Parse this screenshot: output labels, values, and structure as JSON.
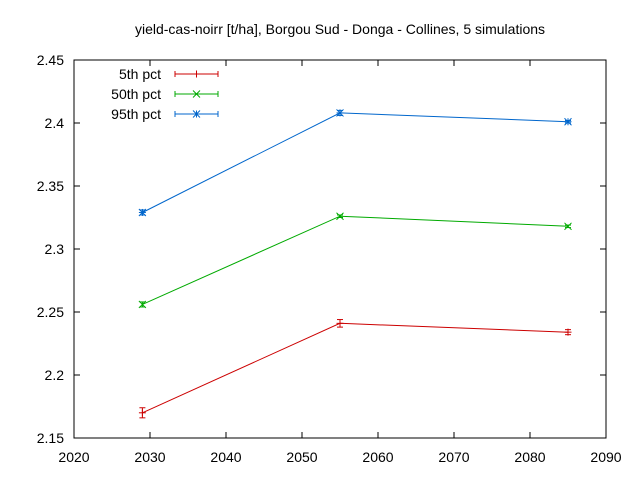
{
  "chart_data": {
    "type": "line",
    "title": "yield-cas-noirr [t/ha], Borgou Sud - Donga - Collines, 5 simulations",
    "xlabel": "",
    "ylabel": "",
    "xlim": [
      2020,
      2090
    ],
    "ylim": [
      2.15,
      2.45
    ],
    "xticks": [
      2020,
      2030,
      2040,
      2050,
      2060,
      2070,
      2080,
      2090
    ],
    "xtick_labels": [
      "2020",
      "2030",
      "2040",
      "2050",
      "2060",
      "2070",
      "2080",
      "2090"
    ],
    "yticks": [
      2.15,
      2.2,
      2.25,
      2.3,
      2.35,
      2.4,
      2.45
    ],
    "ytick_labels": [
      "2.15",
      "2.2",
      "2.25",
      "2.3",
      "2.35",
      "2.4",
      "2.45"
    ],
    "grid": false,
    "legend_position": "top-left",
    "series": [
      {
        "name": "5th pct",
        "color": "#cc0000",
        "marker": "plus",
        "x": [
          2029,
          2055,
          2085
        ],
        "y": [
          2.17,
          2.241,
          2.234
        ],
        "err": [
          0.004,
          0.003,
          0.002
        ]
      },
      {
        "name": "50th pct",
        "color": "#00aa00",
        "marker": "cross",
        "x": [
          2029,
          2055,
          2085
        ],
        "y": [
          2.256,
          2.326,
          2.318
        ],
        "err": [
          0.002,
          0.001,
          0.001
        ]
      },
      {
        "name": "95th pct",
        "color": "#0066cc",
        "marker": "star",
        "x": [
          2029,
          2055,
          2085
        ],
        "y": [
          2.329,
          2.408,
          2.401
        ],
        "err": [
          0.002,
          0.002,
          0.001
        ]
      }
    ]
  }
}
